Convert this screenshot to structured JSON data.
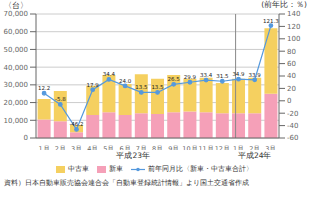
{
  "chart_data": {
    "type": "bar",
    "stacked": true,
    "categories": [
      "1月",
      "2月",
      "3月",
      "4月",
      "5月",
      "6月",
      "7月",
      "8月",
      "9月",
      "10月",
      "11月",
      "12月",
      "1月",
      "2月",
      "3月"
    ],
    "category_groups": [
      {
        "label": "平成23年",
        "size": 12
      },
      {
        "label": "平成24年",
        "size": 3
      }
    ],
    "ylabel": "〈台〉",
    "y2label": "(前年比：％)",
    "ylim": [
      0,
      70000
    ],
    "yticks": [
      0,
      {
        "value": 10000,
        "label": "10,000"
      },
      {
        "value": 20000,
        "label": "20,000"
      },
      {
        "value": 30000,
        "label": "30,000"
      },
      {
        "value": 40000,
        "label": "40,000"
      },
      {
        "value": 50000,
        "label": "50,000"
      },
      {
        "value": 60000,
        "label": "60,000"
      },
      {
        "value": 70000,
        "label": "70,000"
      }
    ],
    "y2lim": [
      -60,
      140
    ],
    "y2ticks": [
      -60,
      -40,
      -20,
      0,
      20,
      40,
      60,
      80,
      100,
      120,
      140
    ],
    "grid": true,
    "legend": "bottom",
    "source": "資料）日本自動車販売協会連合会「自動車登録統計情報」より国土交通省作成",
    "series": [
      {
        "name": "新車",
        "type": "bar",
        "color": "#f5a0b8",
        "values": [
          10500,
          9500,
          3200,
          13000,
          14500,
          13000,
          14000,
          13500,
          14500,
          15000,
          14500,
          14000,
          14000,
          14000,
          25000
        ]
      },
      {
        "name": "中古車",
        "type": "bar",
        "color": "#f5d060",
        "values": [
          11500,
          17000,
          4200,
          16500,
          21000,
          17500,
          22000,
          20000,
          21000,
          18500,
          19500,
          17000,
          19500,
          20000,
          37000
        ]
      },
      {
        "name": "前年同月比〈新車・中古車合計〉",
        "type": "line",
        "axis": "y2",
        "color": "#5599dd",
        "marker": "circle",
        "data_labels": true,
        "values": [
          12.2,
          -5.8,
          -46.2,
          17.9,
          34.4,
          24.0,
          13.5,
          13.5,
          26.5,
          29.9,
          33.4,
          31.5,
          34.9,
          33.9,
          121.3
        ],
        "value_labels": [
          "12.2",
          "-5.8",
          "-46.2",
          "17.9",
          "34.4",
          "24.0",
          "13.5",
          "13.5",
          "26.5",
          "29.9",
          "33.4",
          "31.5",
          "34.9",
          "33.9",
          "121.3"
        ]
      }
    ]
  }
}
